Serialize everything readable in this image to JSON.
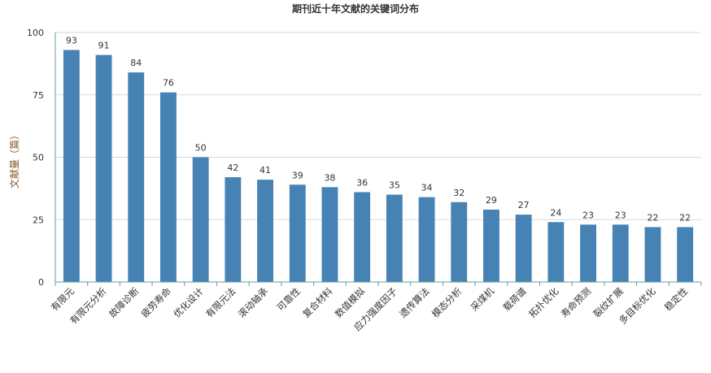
{
  "chart_data": {
    "type": "bar",
    "title": "期刊近十年文献的关键词分布",
    "xlabel": "",
    "ylabel": "文献量（篇）",
    "ylim": [
      0,
      100
    ],
    "yticks": [
      0,
      25,
      50,
      75,
      100
    ],
    "grid": true,
    "bar_color": "#4682b4",
    "categories": [
      "有限元",
      "有限元分析",
      "故障诊断",
      "疲劳寿命",
      "优化设计",
      "有限元法",
      "滚动轴承",
      "可靠性",
      "复合材料",
      "数值模拟",
      "应力强度因子",
      "遗传算法",
      "模态分析",
      "采煤机",
      "载荷谱",
      "拓扑优化",
      "寿命预测",
      "裂纹扩展",
      "多目标优化",
      "稳定性"
    ],
    "values": [
      93,
      91,
      84,
      76,
      50,
      42,
      41,
      39,
      38,
      36,
      35,
      34,
      32,
      29,
      27,
      24,
      23,
      23,
      22,
      22
    ]
  }
}
